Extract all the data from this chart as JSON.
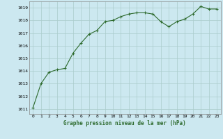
{
  "x": [
    0,
    1,
    2,
    3,
    4,
    5,
    6,
    7,
    8,
    9,
    10,
    11,
    12,
    13,
    14,
    15,
    16,
    17,
    18,
    19,
    20,
    21,
    22,
    23
  ],
  "y": [
    1011.1,
    1013.0,
    1013.9,
    1014.1,
    1014.2,
    1015.4,
    1016.2,
    1016.9,
    1017.2,
    1017.9,
    1018.0,
    1018.3,
    1018.5,
    1018.6,
    1018.6,
    1018.5,
    1017.9,
    1017.5,
    1017.9,
    1018.1,
    1018.5,
    1019.1,
    1018.9,
    1018.9
  ],
  "line_color": "#2d6a2d",
  "marker_color": "#2d6a2d",
  "bg_color": "#cce8f0",
  "grid_color": "#aacccc",
  "xlabel": "Graphe pression niveau de la mer (hPa)",
  "xlabel_color": "#2d6a2d",
  "ylabel_ticks": [
    1011,
    1012,
    1013,
    1014,
    1015,
    1016,
    1017,
    1018,
    1019
  ],
  "ylim": [
    1010.6,
    1019.5
  ],
  "xlim": [
    -0.5,
    23.5
  ],
  "xticks": [
    0,
    1,
    2,
    3,
    4,
    5,
    6,
    7,
    8,
    9,
    10,
    11,
    12,
    13,
    14,
    15,
    16,
    17,
    18,
    19,
    20,
    21,
    22,
    23
  ]
}
